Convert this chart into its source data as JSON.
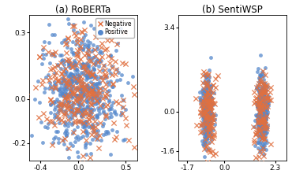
{
  "title_a": "(a) RoBERTa",
  "title_b": "(b) SentiWSP",
  "legend_neg": "Negative",
  "legend_pos": "Positive",
  "neg_color": "#e07040",
  "pos_color": "#5588cc",
  "roberta_xlim": [
    -0.52,
    0.62
  ],
  "roberta_ylim": [
    -0.28,
    0.38
  ],
  "roberta_xticks": [
    -0.4,
    0.0,
    0.5
  ],
  "roberta_yticks": [
    -0.2,
    0.0,
    0.3
  ],
  "sentiwsp_xlim": [
    -2.1,
    2.8
  ],
  "sentiwsp_ylim": [
    -2.0,
    3.9
  ],
  "sentiwsp_xticks": [
    -1.7,
    0.0,
    2.3
  ],
  "sentiwsp_yticks": [
    -1.6,
    0.0,
    3.4
  ],
  "seed": 42
}
